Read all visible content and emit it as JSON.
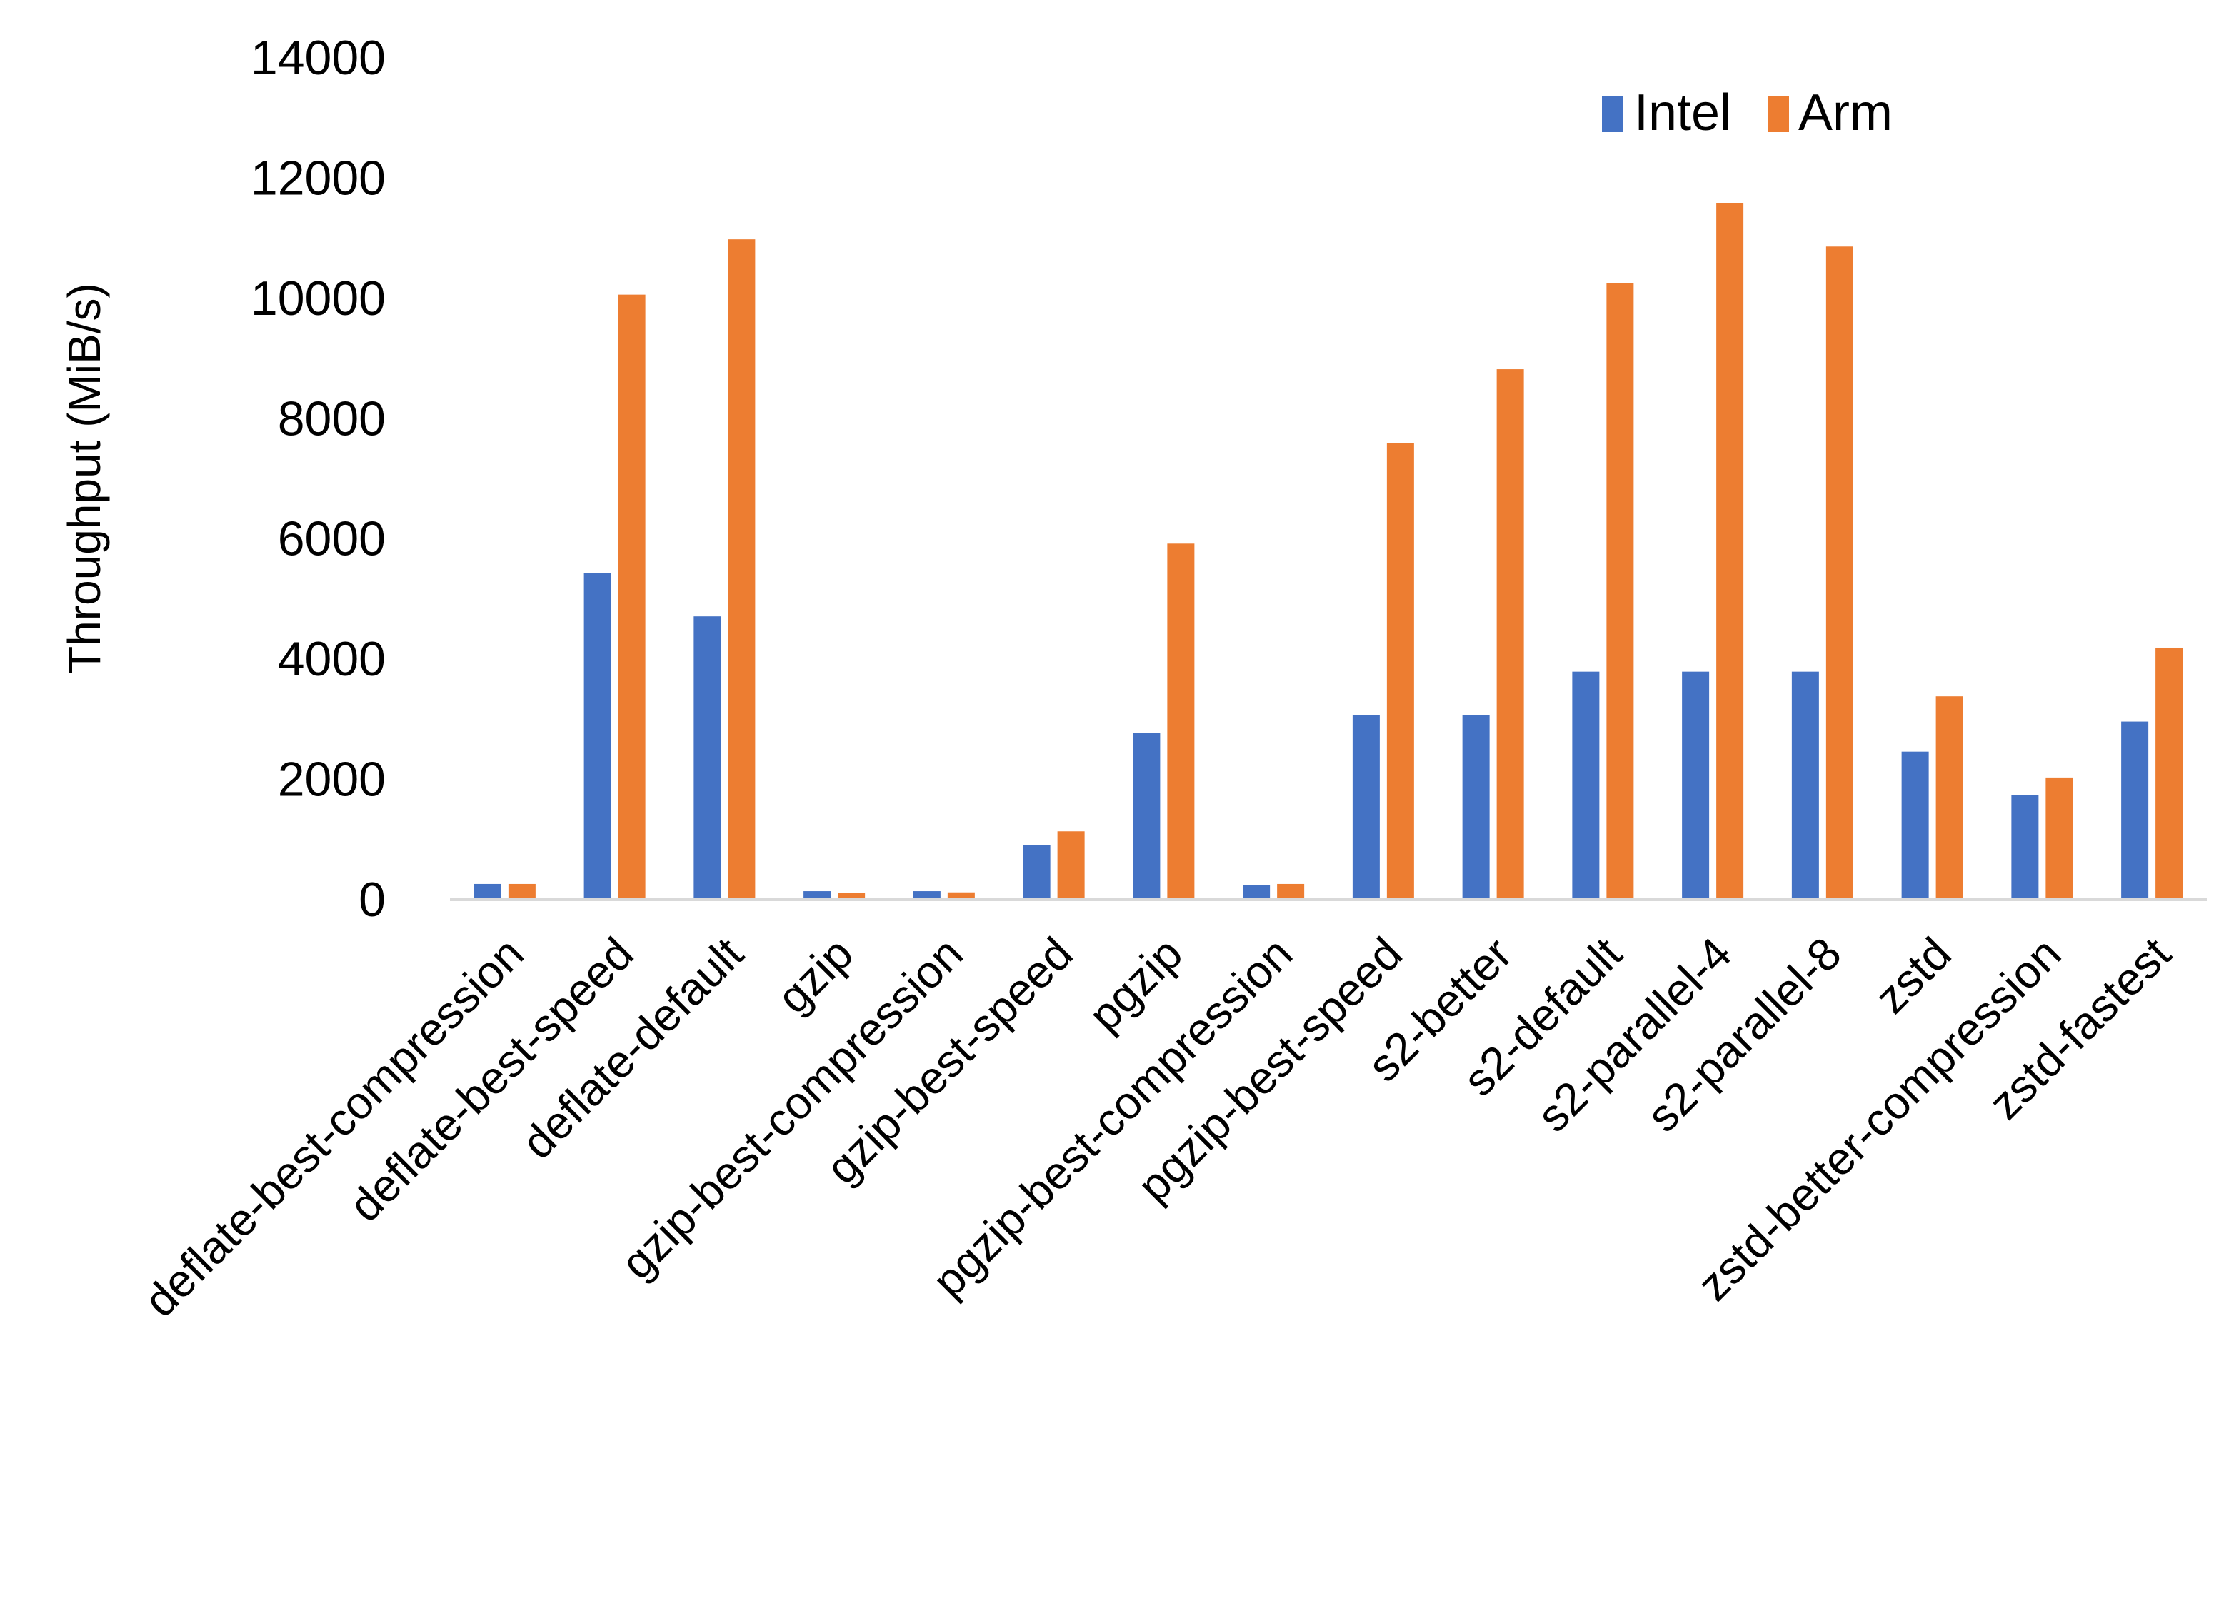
{
  "chart_data": {
    "type": "bar",
    "title": "",
    "xlabel": "",
    "ylabel": "Throughput (MiB/s)",
    "ylim": [
      0,
      14000
    ],
    "yticks": [
      0,
      2000,
      4000,
      6000,
      8000,
      10000,
      12000,
      14000
    ],
    "grid": false,
    "legend_position": "top-right",
    "categories": [
      "deflate-best-compression",
      "deflate-best-speed",
      "deflate-default",
      "gzip",
      "gzip-best-compression",
      "gzip-best-speed",
      "pgzip",
      "pgzip-best-compression",
      "pgzip-best-speed",
      "s2-better",
      "s2-default",
      "s2-parallel-4",
      "s2-parallel-8",
      "zstd",
      "zstd-better-compression",
      "zstd-fastest"
    ],
    "series": [
      {
        "name": "Intel",
        "color": "#4472C4",
        "values": [
          250,
          5420,
          4700,
          130,
          130,
          900,
          2760,
          235,
          3060,
          3060,
          3780,
          3780,
          3780,
          2450,
          1730,
          2950
        ]
      },
      {
        "name": "Arm",
        "color": "#ED7D31",
        "values": [
          250,
          10050,
          10970,
          95,
          110,
          1125,
          5910,
          250,
          7580,
          8810,
          10240,
          11570,
          10850,
          3370,
          2020,
          4180
        ]
      }
    ]
  }
}
